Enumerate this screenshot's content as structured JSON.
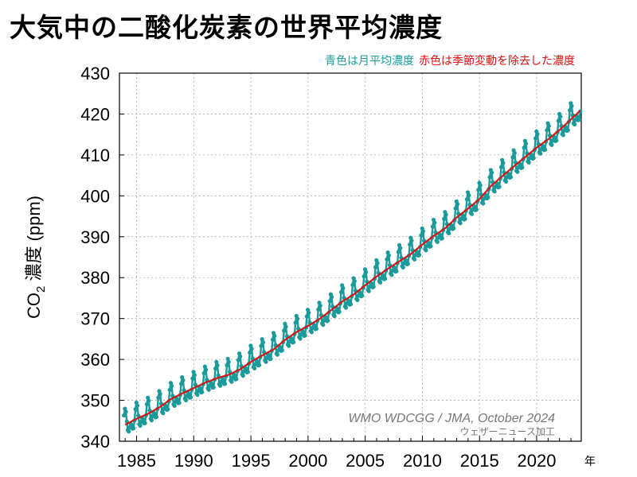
{
  "title": "大気中の二酸化炭素の世界平均濃度",
  "legend": {
    "monthly_label": "青色は月平均濃度",
    "deseasonalized_label": "赤色は季節変動を除去した濃度"
  },
  "credit": {
    "source": "WMO WDCGG / JMA, October 2024",
    "processed": "ウェザーニュース加工"
  },
  "colors": {
    "monthly": "#1a9a9a",
    "trend": "#d01818",
    "grid": "#aaaaaa"
  },
  "chart_data": {
    "type": "line",
    "ylabel_main": "CO",
    "ylabel_sub": "2",
    "ylabel_rest": " 濃度 (ppm)",
    "x_unit": "年",
    "xlim": [
      1983.5,
      2023.9
    ],
    "ylim": [
      340,
      430
    ],
    "x_ticks": [
      1985,
      1990,
      1995,
      2000,
      2005,
      2010,
      2015,
      2020
    ],
    "y_ticks": [
      340,
      350,
      360,
      370,
      380,
      390,
      400,
      410,
      420,
      430
    ],
    "grid": true,
    "legend_position": "top-right",
    "seasonal_amplitude": 4.0,
    "series": [
      {
        "name": "青色は月平均濃度",
        "style": "monthly"
      },
      {
        "name": "赤色は季節変動を除去した濃度",
        "style": "trend",
        "x": [
          1984,
          1985,
          1986,
          1987,
          1988,
          1989,
          1990,
          1991,
          1992,
          1993,
          1994,
          1995,
          1996,
          1997,
          1998,
          1999,
          2000,
          2001,
          2002,
          2003,
          2004,
          2005,
          2006,
          2007,
          2008,
          2009,
          2010,
          2011,
          2012,
          2013,
          2014,
          2015,
          2016,
          2017,
          2018,
          2019,
          2020,
          2021,
          2022,
          2023.8
        ],
        "y": [
          344.0,
          345.5,
          346.7,
          348.3,
          350.3,
          351.7,
          353.0,
          354.3,
          355.4,
          356.2,
          357.5,
          359.4,
          361.0,
          362.5,
          364.8,
          366.7,
          368.2,
          369.9,
          372.0,
          374.2,
          375.9,
          378.1,
          380.3,
          382.2,
          384.0,
          385.8,
          388.1,
          390.2,
          392.1,
          394.7,
          396.9,
          399.2,
          402.4,
          404.8,
          407.2,
          409.5,
          411.8,
          413.8,
          416.1,
          420.8
        ]
      }
    ]
  }
}
